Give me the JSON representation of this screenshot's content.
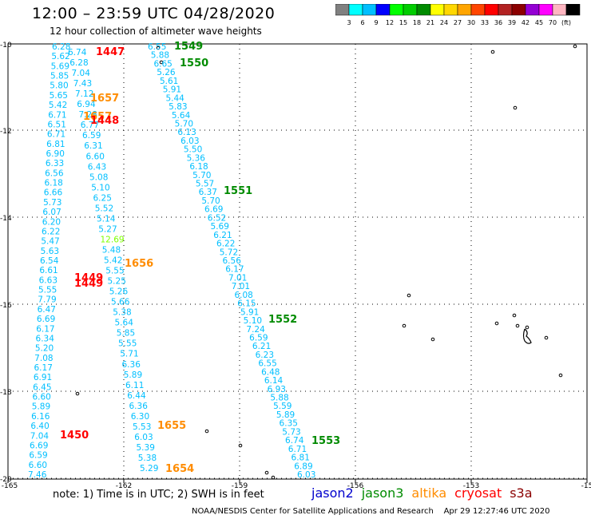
{
  "title": "12:00 – 23:59 UTC 04/28/2020",
  "subtitle": "12 hour collection of altimeter wave heights",
  "colorbar": {
    "colors": [
      "#808080",
      "#00ffff",
      "#00bfff",
      "#0000ff",
      "#00ff00",
      "#00cd00",
      "#008b00",
      "#ffff00",
      "#ffd700",
      "#ffa500",
      "#ff4500",
      "#ff0000",
      "#b22222",
      "#8b0000",
      "#9400d3",
      "#ff00ff",
      "#ffb6c1",
      "#000000"
    ],
    "labels": [
      "3",
      "6",
      "9",
      "12",
      "15",
      "18",
      "21",
      "24",
      "27",
      "30",
      "33",
      "36",
      "39",
      "42",
      "45",
      "70",
      "(ft)"
    ]
  },
  "axes": {
    "x_ticks": [
      "-165",
      "-162",
      "-159",
      "-156",
      "-153",
      "-15"
    ],
    "y_ticks": [
      "-10",
      "-12",
      "-14",
      "-16",
      "-18",
      "-20"
    ]
  },
  "note": "note:  1) Time is in UTC;  2) SWH is in feet",
  "satellites": [
    {
      "name": "jason2",
      "color": "#0000cd"
    },
    {
      "name": "jason3",
      "color": "#008b00"
    },
    {
      "name": "altika",
      "color": "#ff8c00"
    },
    {
      "name": "cryosat",
      "color": "#ff0000"
    },
    {
      "name": "s3a",
      "color": "#8b0000"
    }
  ],
  "footer": {
    "center": "NOAA/NESDIS Center for Satellite Applications and Research",
    "timestamp": "Apr 29 12:27:46 UTC 2020"
  },
  "pass_labels": [
    {
      "text": "1549",
      "color": "#008b00"
    },
    {
      "text": "1550",
      "color": "#008b00"
    },
    {
      "text": "1447",
      "color": "#ff0000"
    },
    {
      "text": "1657",
      "color": "#ff8c00"
    },
    {
      "text": "1657",
      "color": "#ff8c00"
    },
    {
      "text": "1448",
      "color": "#ff0000"
    },
    {
      "text": "1551",
      "color": "#008b00"
    },
    {
      "text": "1656",
      "color": "#ff8c00"
    },
    {
      "text": "1449",
      "color": "#ff0000"
    },
    {
      "text": "1449",
      "color": "#ff0000"
    },
    {
      "text": "1552",
      "color": "#008b00"
    },
    {
      "text": "1655",
      "color": "#ff8c00"
    },
    {
      "text": "1450",
      "color": "#ff0000"
    },
    {
      "text": "1553",
      "color": "#008b00"
    },
    {
      "text": "1654",
      "color": "#ff8c00"
    }
  ],
  "track_a_values": [
    "6.28",
    "5.62",
    "5.69",
    "5.85",
    "5.80",
    "5.65",
    "5.42",
    "6.71",
    "6.51",
    "6.71",
    "6.81",
    "6.90",
    "6.33",
    "6.56",
    "6.18",
    "6.66",
    "5.73",
    "6.07",
    "6.20",
    "6.22",
    "5.47",
    "5.63",
    "6.54",
    "6.61",
    "6.63",
    "5.55",
    "7.79",
    "6.47",
    "6.69",
    "6.17",
    "6.34",
    "5.20",
    "7.08",
    "6.17",
    "6.91",
    "6.45",
    "6.60",
    "5.89",
    "6.16",
    "6.40",
    "7.04",
    "6.69",
    "6.59",
    "6.60",
    "7.46"
  ],
  "track_b_values": [
    "6.74",
    "6.28",
    "7.04",
    "7.43",
    "7.12",
    "6.94",
    "7.28",
    "6.77",
    "6.59",
    "6.31",
    "6.60",
    "6.43",
    "5.08",
    "5.10",
    "6.25",
    "5.52",
    "5.14",
    "5.27",
    "12.69",
    "5.48",
    "5.42",
    "5.55",
    "5.25",
    "5.26",
    "5.66",
    "5.38",
    "5.64",
    "5.85",
    "5.55",
    "5.71",
    "6.36",
    "5.89",
    "6.11",
    "6.44",
    "6.36",
    "6.30",
    "5.53",
    "6.03",
    "5.39",
    "5.38",
    "5.29"
  ],
  "track_c_values": [
    "6.55",
    "5.88",
    "6.65",
    "5.26",
    "5.61",
    "5.91",
    "5.44",
    "5.83",
    "5.64",
    "5.70",
    "6.13",
    "6.03",
    "5.50",
    "5.36",
    "6.18",
    "5.70",
    "5.57",
    "6.37",
    "5.70",
    "6.69",
    "6.52",
    "5.69",
    "6.21",
    "6.22",
    "5.72",
    "6.56",
    "6.17",
    "7.01",
    "7.01",
    "6.08",
    "6.15",
    "5.91",
    "5.10",
    "7.24",
    "6.59",
    "6.21",
    "6.23",
    "6.55",
    "6.48",
    "6.14",
    "6.93",
    "5.88",
    "5.59",
    "5.89",
    "6.35",
    "5.73",
    "6.74",
    "6.71",
    "6.81",
    "6.89",
    "6.03"
  ],
  "track_b_highlight_color": "#7fff00",
  "track_color": "#00bfff"
}
